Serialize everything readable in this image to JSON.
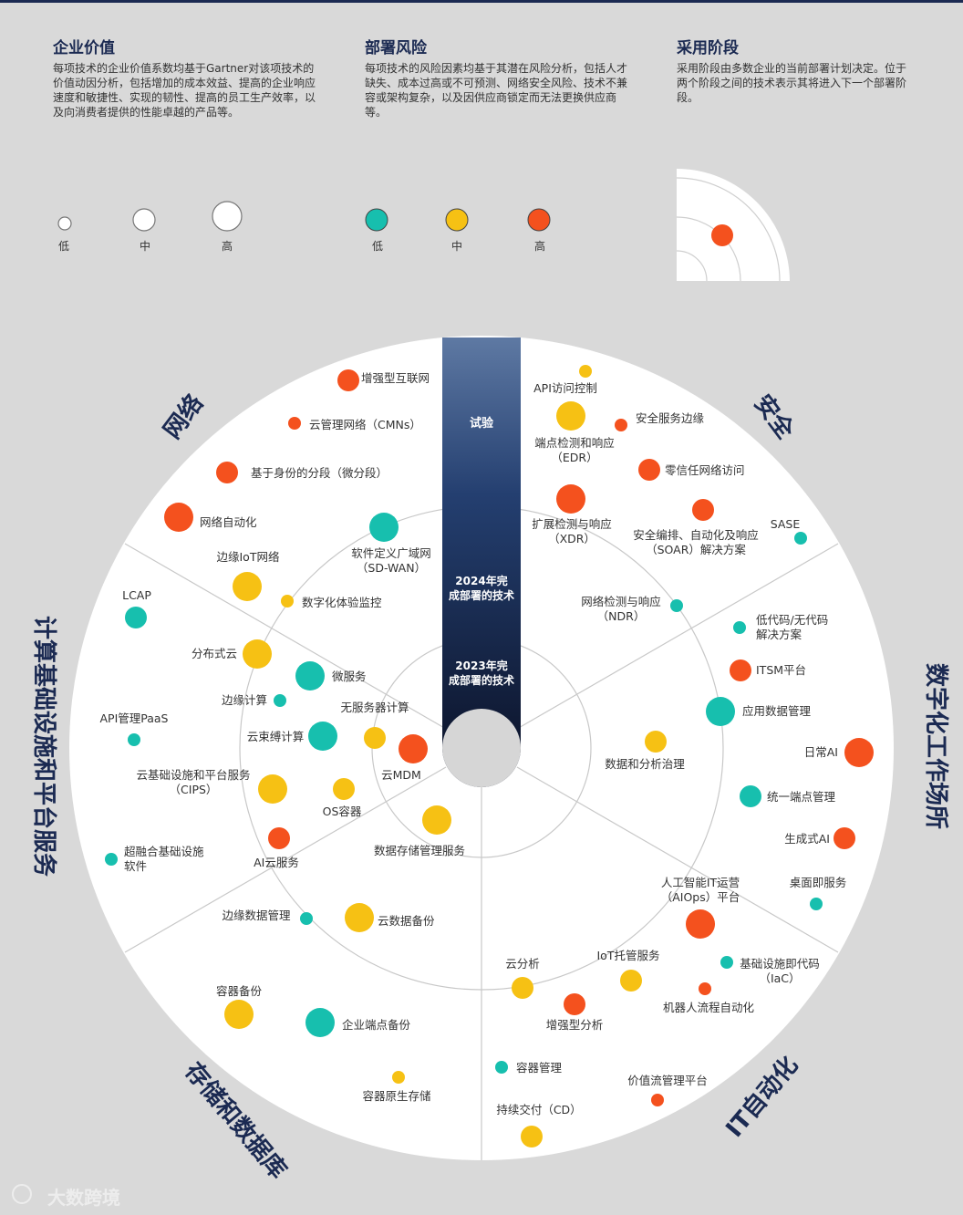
{
  "legend": {
    "value": {
      "title": "企业价值",
      "desc": "每项技术的企业价值系数均基于Gartner对该项技术的价值动因分析，包括增加的成本效益、提高的企业响应速度和敏捷性、实现的韧性、提高的员工生产效率，以及向消费者提供的性能卓越的产品等。",
      "levels": [
        "低",
        "中",
        "高"
      ]
    },
    "risk": {
      "title": "部署风险",
      "desc": "每项技术的风险因素均基于其潜在风险分析，包括人才缺失、成本过高或不可预测、网络安全风险、技术不兼容或架构复杂，以及因供应商锁定而无法更换供应商等。",
      "levels": [
        "低",
        "中",
        "高"
      ]
    },
    "stage": {
      "title": "采用阶段",
      "desc": "采用阶段由多数企业的当前部署计划决定。位于两个阶段之间的技术表示其将进入下一个部署阶段。"
    }
  },
  "colors": {
    "low": "#17bfae",
    "medium": "#f6c114",
    "high": "#f4511e",
    "navy": "#1b2a52",
    "ring_line": "#c8c8c8"
  },
  "stages": {
    "trial": "试验",
    "y2024": "2024年完成部署的技术",
    "y2023": "2023年完成部署的技术"
  },
  "sectors": [
    "网络",
    "安全",
    "数字化工作场所",
    "IT自动化",
    "存储和数据库",
    "计算基础设施和平台服务"
  ],
  "technologies": [
    {
      "name": "增强型互联网",
      "risk": "high",
      "value": "mid"
    },
    {
      "name": "云管理网络（CMNs）",
      "risk": "high",
      "value": "low"
    },
    {
      "name": "基于身份的分段（微分段）",
      "risk": "high",
      "value": "mid"
    },
    {
      "name": "网络自动化",
      "risk": "high",
      "value": "high"
    },
    {
      "name": "软件定义广域网（SD-WAN）",
      "risk": "low",
      "value": "high"
    },
    {
      "name": "边缘IoT网络",
      "risk": "medium",
      "value": "high"
    },
    {
      "name": "数字化体验监控",
      "risk": "medium",
      "value": "low"
    },
    {
      "name": "API访问控制",
      "risk": "medium",
      "value": "low"
    },
    {
      "name": "端点检测和响应（EDR）",
      "risk": "medium",
      "value": "high"
    },
    {
      "name": "安全服务边缘",
      "risk": "high",
      "value": "low"
    },
    {
      "name": "零信任网络访问",
      "risk": "high",
      "value": "mid"
    },
    {
      "name": "扩展检测与响应（XDR）",
      "risk": "high",
      "value": "high"
    },
    {
      "name": "安全编排、自动化及响应（SOAR）解决方案",
      "risk": "high",
      "value": "mid"
    },
    {
      "name": "SASE",
      "risk": "low",
      "value": "low"
    },
    {
      "name": "网络检测与响应（NDR）",
      "risk": "low",
      "value": "low"
    },
    {
      "name": "低代码/无代码解决方案",
      "risk": "low",
      "value": "low"
    },
    {
      "name": "ITSM平台",
      "risk": "high",
      "value": "mid"
    },
    {
      "name": "应用数据管理",
      "risk": "low",
      "value": "high"
    },
    {
      "name": "数据和分析治理",
      "risk": "medium",
      "value": "mid"
    },
    {
      "name": "日常AI",
      "risk": "high",
      "value": "high"
    },
    {
      "name": "统一端点管理",
      "risk": "low",
      "value": "mid"
    },
    {
      "name": "生成式AI",
      "risk": "high",
      "value": "mid"
    },
    {
      "name": "人工智能IT运营（AIOps）平台",
      "risk": "high",
      "value": "high"
    },
    {
      "name": "桌面即服务",
      "risk": "low",
      "value": "low"
    },
    {
      "name": "基础设施即代码（IaC）",
      "risk": "low",
      "value": "low"
    },
    {
      "name": "机器人流程自动化",
      "risk": "high",
      "value": "low"
    },
    {
      "name": "IoT托管服务",
      "risk": "medium",
      "value": "mid"
    },
    {
      "name": "云分析",
      "risk": "medium",
      "value": "mid"
    },
    {
      "name": "增强型分析",
      "risk": "high",
      "value": "mid"
    },
    {
      "name": "容器管理",
      "risk": "low",
      "value": "low"
    },
    {
      "name": "价值流管理平台",
      "risk": "high",
      "value": "low"
    },
    {
      "name": "持续交付（CD）",
      "risk": "medium",
      "value": "mid"
    },
    {
      "name": "容器原生存储",
      "risk": "medium",
      "value": "low"
    },
    {
      "name": "容器备份",
      "risk": "medium",
      "value": "high"
    },
    {
      "name": "企业端点备份",
      "risk": "low",
      "value": "high"
    },
    {
      "name": "边缘数据管理",
      "risk": "low",
      "value": "low"
    },
    {
      "name": "云数据备份",
      "risk": "medium",
      "value": "high"
    },
    {
      "name": "数据存储管理服务",
      "risk": "medium",
      "value": "high"
    },
    {
      "name": "云MDM",
      "risk": "high",
      "value": "high"
    },
    {
      "name": "无服务器计算",
      "risk": "medium",
      "value": "mid"
    },
    {
      "name": "OS容器",
      "risk": "medium",
      "value": "mid"
    },
    {
      "name": "AI云服务",
      "risk": "high",
      "value": "mid"
    },
    {
      "name": "超融合基础设施软件",
      "risk": "low",
      "value": "low"
    },
    {
      "name": "云基础设施和平台服务（CIPS）",
      "risk": "medium",
      "value": "high"
    },
    {
      "name": "API管理PaaS",
      "risk": "low",
      "value": "low"
    },
    {
      "name": "云束缚计算",
      "risk": "low",
      "value": "high"
    },
    {
      "name": "边缘计算",
      "risk": "low",
      "value": "low"
    },
    {
      "name": "微服务",
      "risk": "low",
      "value": "high"
    },
    {
      "name": "分布式云",
      "risk": "medium",
      "value": "high"
    },
    {
      "name": "LCAP",
      "risk": "low",
      "value": "mid"
    }
  ],
  "watermark": "大数跨境"
}
